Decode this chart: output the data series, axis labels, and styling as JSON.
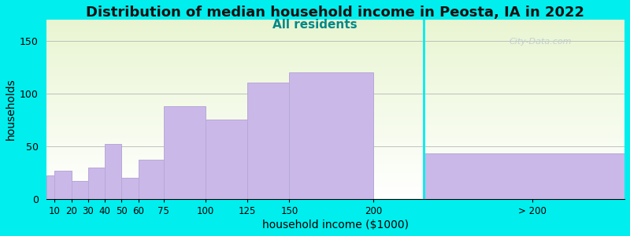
{
  "title": "Distribution of median household income in Peosta, IA in 2022",
  "subtitle": "All residents",
  "xlabel": "household income ($1000)",
  "ylabel": "households",
  "background_color": "#00EEEE",
  "bar_color": "#c9b8e8",
  "bar_edgecolor": "#b8a8d8",
  "categories": [
    "10",
    "20",
    "30",
    "40",
    "50",
    "60",
    "75",
    "100",
    "125",
    "150",
    "200",
    "> 200"
  ],
  "left_edges": [
    5,
    10,
    20,
    30,
    40,
    50,
    60,
    75,
    100,
    125,
    150,
    230
  ],
  "widths": [
    10,
    10,
    10,
    10,
    10,
    10,
    15,
    25,
    25,
    25,
    50,
    120
  ],
  "tick_positions": [
    10,
    20,
    30,
    40,
    50,
    60,
    75,
    100,
    125,
    150,
    200
  ],
  "tick_labels": [
    "10",
    "20",
    "30",
    "40",
    "50",
    "60",
    "75",
    "100",
    "125",
    "150",
    "200"
  ],
  "gt200_tick": 295,
  "values": [
    22,
    27,
    17,
    30,
    52,
    20,
    37,
    88,
    75,
    110,
    120,
    43
  ],
  "ylim": [
    0,
    170
  ],
  "yticks": [
    0,
    50,
    100,
    150
  ],
  "watermark": "City-Data.com",
  "title_fontsize": 13,
  "subtitle_fontsize": 11,
  "axis_label_fontsize": 10,
  "xlim_left": 5,
  "xlim_right": 350
}
